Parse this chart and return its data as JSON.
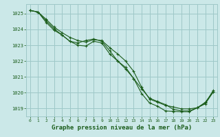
{
  "background_color": "#cbe8e8",
  "grid_color": "#9ec8c8",
  "line_color": "#1a5c1a",
  "xlabel": "Graphe pression niveau de la mer (hPa)",
  "xlabel_fontsize": 6.5,
  "ylim": [
    1018.5,
    1025.6
  ],
  "xlim": [
    -0.5,
    23.5
  ],
  "yticks": [
    1019,
    1020,
    1021,
    1022,
    1023,
    1024,
    1025
  ],
  "xticks": [
    0,
    1,
    2,
    3,
    4,
    5,
    6,
    7,
    8,
    9,
    10,
    11,
    12,
    13,
    14,
    15,
    16,
    17,
    18,
    19,
    20,
    21,
    22,
    23
  ],
  "line1_x": [
    0,
    1,
    2,
    3,
    4,
    5,
    6,
    7,
    8,
    9,
    10,
    11,
    12,
    13,
    14,
    15,
    16,
    17,
    18,
    19,
    20,
    21,
    22,
    23
  ],
  "line1_y": [
    1025.2,
    1025.1,
    1024.65,
    1024.15,
    1023.8,
    1023.5,
    1023.3,
    1023.2,
    1023.35,
    1023.3,
    1022.85,
    1022.45,
    1022.0,
    1021.35,
    1020.35,
    1019.6,
    1019.4,
    1019.2,
    1019.1,
    1018.98,
    1018.98,
    1019.05,
    1019.3,
    1020.05
  ],
  "line2_x": [
    0,
    1,
    2,
    3,
    4,
    5,
    6,
    7,
    8,
    9,
    10,
    11,
    12,
    13,
    14,
    15,
    16,
    17,
    18,
    19,
    20,
    21,
    22,
    23
  ],
  "line2_y": [
    1025.2,
    1025.1,
    1024.55,
    1024.05,
    1023.65,
    1023.25,
    1023.0,
    1022.95,
    1023.25,
    1023.15,
    1022.45,
    1022.0,
    1021.6,
    1020.9,
    1019.95,
    1019.35,
    1019.15,
    1018.85,
    1018.82,
    1018.8,
    1018.8,
    1019.05,
    1019.4,
    1020.05
  ],
  "line3_x": [
    0,
    1,
    2,
    3,
    4,
    5,
    6,
    7,
    8,
    9,
    10,
    11,
    12,
    13,
    14,
    15,
    16,
    17,
    18,
    19,
    20,
    21,
    22,
    23
  ],
  "line3_y": [
    1025.2,
    1025.1,
    1024.45,
    1023.95,
    1023.65,
    1023.25,
    1023.15,
    1023.3,
    1023.4,
    1023.25,
    1022.65,
    1022.0,
    1021.5,
    1020.9,
    1020.25,
    1019.65,
    1019.45,
    1019.25,
    1018.95,
    1018.85,
    1018.85,
    1019.05,
    1019.35,
    1020.15
  ]
}
